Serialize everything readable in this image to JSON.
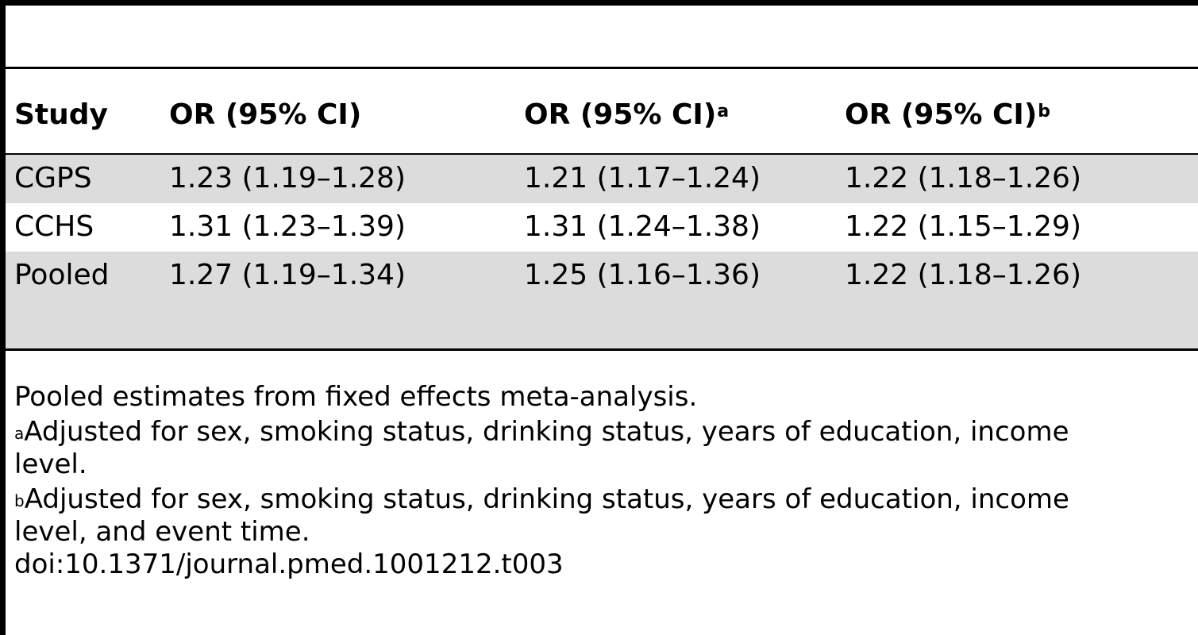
{
  "table": {
    "headers": {
      "study": "Study",
      "or_crude": "OR (95% CI)",
      "or_adj_a": "OR (95% CI)",
      "or_adj_a_mark": "a",
      "or_adj_b": "OR (95% CI)",
      "or_adj_b_mark": "b"
    },
    "rows": [
      {
        "study": "CGPS",
        "or_crude": "1.23 (1.19–1.28)",
        "or_adj_a": "1.21 (1.17–1.24)",
        "or_adj_b": "1.22 (1.18–1.26)"
      },
      {
        "study": "CCHS",
        "or_crude": "1.31 (1.23–1.39)",
        "or_adj_a": "1.31 (1.24–1.38)",
        "or_adj_b": "1.22 (1.15–1.29)"
      },
      {
        "study": "Pooled",
        "or_crude": "1.27 (1.19–1.34)",
        "or_adj_a": "1.25 (1.16–1.36)",
        "or_adj_b": "1.22 (1.18–1.26)"
      }
    ],
    "row_shading": [
      "#dcdcdc",
      "#ffffff",
      "#dcdcdc"
    ]
  },
  "footnotes": {
    "pooled_note": "Pooled estimates from fixed effects meta-analysis.",
    "a_mark": "a",
    "a_text": "Adjusted for sex, smoking status, drinking status, years of education, income",
    "a_text_cont": "level.",
    "b_mark": "b",
    "b_text": "Adjusted for sex, smoking status, drinking status, years of education, income",
    "b_text_cont": "level, and event time.",
    "doi": "doi:10.1371/journal.pmed.1001212.t003"
  }
}
